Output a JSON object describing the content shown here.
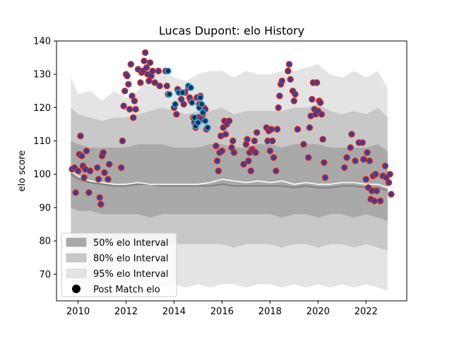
{
  "chart_data": {
    "type": "scatter",
    "title": "Lucas Dupont: elo History",
    "xlabel": "",
    "ylabel": "elo score",
    "xlim": [
      2009.1,
      2023.7
    ],
    "ylim": [
      62,
      140
    ],
    "xticks": [
      2010,
      2012,
      2014,
      2016,
      2018,
      2020,
      2022
    ],
    "yticks": [
      70,
      80,
      90,
      100,
      110,
      120,
      130,
      140
    ],
    "grid": false,
    "legend_position": "lower-left",
    "legend": [
      {
        "label": "50% elo Interval",
        "swatch": "band50"
      },
      {
        "label": "80% elo Interval",
        "swatch": "band80"
      },
      {
        "label": "95% elo Interval",
        "swatch": "band95"
      },
      {
        "label": "Post Match elo",
        "swatch": "dot"
      }
    ],
    "colors": {
      "band50": "#a9a9a9",
      "band80": "#c8c8c8",
      "band95": "#e4e4e4",
      "median_line": "#808080",
      "mean_line": "#ffffff",
      "point_fill": "#3a3f8f",
      "point_edge": "#d62728",
      "highlight_edge": "#29a8e0"
    },
    "bands": {
      "x": [
        2009.7,
        2010.0,
        2010.5,
        2011.0,
        2011.5,
        2012.0,
        2012.5,
        2013.0,
        2013.5,
        2014.0,
        2014.5,
        2015.0,
        2015.5,
        2016.0,
        2016.5,
        2017.0,
        2017.5,
        2018.0,
        2018.5,
        2019.0,
        2019.5,
        2020.0,
        2020.5,
        2021.0,
        2021.5,
        2022.0,
        2022.5,
        2022.9
      ],
      "p95_upper": [
        129,
        124,
        125,
        122,
        125,
        123,
        125,
        130,
        131,
        129,
        128,
        130,
        131,
        131,
        129,
        131,
        130,
        130,
        131,
        131,
        132,
        133,
        130,
        129,
        131,
        129,
        131,
        126
      ],
      "p95_lower": [
        67,
        68,
        67,
        68,
        67,
        68,
        67,
        67,
        66,
        67,
        66,
        67,
        66,
        67,
        67,
        66,
        67,
        67,
        66,
        67,
        66,
        67,
        66,
        67,
        66,
        67,
        66,
        65
      ],
      "p80_upper": [
        120,
        118,
        117,
        116,
        117,
        117,
        118,
        119,
        120,
        119,
        118,
        119,
        119,
        120,
        118,
        119,
        119,
        119,
        119,
        120,
        120,
        121,
        119,
        118,
        119,
        118,
        120,
        117
      ],
      "p80_lower": [
        78,
        79,
        79,
        80,
        80,
        80,
        79,
        78,
        78,
        79,
        79,
        79,
        79,
        79,
        78,
        79,
        79,
        79,
        78,
        79,
        79,
        78,
        79,
        79,
        78,
        79,
        78,
        77
      ],
      "p50_upper": [
        110,
        109,
        108,
        108,
        108,
        108,
        109,
        109,
        109,
        108,
        108,
        108,
        109,
        109,
        108,
        108,
        109,
        109,
        108,
        109,
        109,
        109,
        108,
        108,
        108,
        108,
        109,
        107
      ],
      "p50_lower": [
        90,
        89,
        89,
        88,
        88,
        88,
        88,
        87,
        88,
        88,
        88,
        88,
        88,
        88,
        88,
        88,
        88,
        88,
        87,
        88,
        88,
        87,
        88,
        88,
        87,
        88,
        87,
        86
      ]
    },
    "median_line": {
      "x": [
        2009.7,
        2010.0,
        2010.5,
        2011.0,
        2011.5,
        2012.0,
        2012.5,
        2013.0,
        2013.5,
        2014.0,
        2014.5,
        2015.0,
        2015.5,
        2016.0,
        2016.5,
        2017.0,
        2017.5,
        2018.0,
        2018.5,
        2019.0,
        2019.5,
        2020.0,
        2020.5,
        2021.0,
        2021.5,
        2022.0,
        2022.5,
        2022.9
      ],
      "y": [
        100,
        98.5,
        97.5,
        97,
        96.5,
        96.5,
        97,
        97,
        96.5,
        96.5,
        96.5,
        96.5,
        96.5,
        97,
        96.5,
        96.5,
        96.5,
        96.5,
        96.5,
        96,
        96.5,
        96,
        96,
        96.5,
        96.5,
        96,
        96,
        95
      ]
    },
    "mean_line": {
      "x": [
        2009.7,
        2010.0,
        2010.5,
        2011.0,
        2011.5,
        2012.0,
        2012.5,
        2013.0,
        2013.5,
        2014.0,
        2014.5,
        2015.0,
        2015.5,
        2016.0,
        2016.5,
        2017.0,
        2017.5,
        2018.0,
        2018.5,
        2019.0,
        2019.5,
        2020.0,
        2020.5,
        2021.0,
        2021.5,
        2022.0,
        2022.5,
        2022.9
      ],
      "y": [
        101,
        99.5,
        98,
        97.5,
        97,
        97,
        97.5,
        97,
        97,
        97,
        97,
        97,
        97.5,
        98.5,
        98,
        97.5,
        98,
        97.5,
        98,
        97,
        97.5,
        97,
        97,
        97.5,
        97.5,
        97,
        97,
        96
      ]
    },
    "points": [
      [
        2009.75,
        101.5
      ],
      [
        2009.85,
        102
      ],
      [
        2009.9,
        94.5
      ],
      [
        2010.0,
        101
      ],
      [
        2010.05,
        106
      ],
      [
        2010.1,
        111.5
      ],
      [
        2010.15,
        105.5
      ],
      [
        2010.2,
        102.5
      ],
      [
        2010.25,
        99
      ],
      [
        2010.3,
        101.5
      ],
      [
        2010.35,
        107
      ],
      [
        2010.45,
        94.5
      ],
      [
        2010.5,
        101
      ],
      [
        2010.8,
        102
      ],
      [
        2010.85,
        98.5
      ],
      [
        2010.9,
        93
      ],
      [
        2010.95,
        91
      ],
      [
        2011.0,
        105.5
      ],
      [
        2011.05,
        106.5
      ],
      [
        2011.1,
        100.5
      ],
      [
        2011.25,
        98.5
      ],
      [
        2011.3,
        103
      ],
      [
        2011.8,
        102
      ],
      [
        2011.85,
        110
      ],
      [
        2011.9,
        120.5
      ],
      [
        2011.95,
        125
      ],
      [
        2012.0,
        130
      ],
      [
        2012.05,
        129.5
      ],
      [
        2012.1,
        127
      ],
      [
        2012.15,
        119.5
      ],
      [
        2012.2,
        133
      ],
      [
        2012.25,
        123.5
      ],
      [
        2012.3,
        117
      ],
      [
        2012.35,
        122
      ],
      [
        2012.4,
        119.5
      ],
      [
        2012.5,
        131.5
      ],
      [
        2012.6,
        127.5
      ],
      [
        2012.65,
        130.5
      ],
      [
        2012.7,
        131
      ],
      [
        2012.75,
        134
      ],
      [
        2012.8,
        136.5
      ],
      [
        2012.85,
        132
      ],
      [
        2012.9,
        130
      ],
      [
        2012.95,
        128
      ],
      [
        2013.0,
        133.5
      ],
      [
        2013.05,
        129.5
      ],
      [
        2013.1,
        131
      ],
      [
        2013.2,
        127.5
      ],
      [
        2013.35,
        131
      ],
      [
        2013.4,
        126.5
      ],
      [
        2013.75,
        124
      ],
      [
        2013.7,
        126.5
      ],
      [
        2013.65,
        131
      ],
      [
        2014.0,
        120
      ],
      [
        2014.05,
        121
      ],
      [
        2014.1,
        118
      ],
      [
        2014.15,
        125.5
      ],
      [
        2014.2,
        124.5
      ],
      [
        2014.3,
        122.5
      ],
      [
        2014.4,
        121
      ],
      [
        2014.45,
        124.5
      ],
      [
        2014.6,
        126
      ],
      [
        2014.65,
        123
      ],
      [
        2014.7,
        122
      ],
      [
        2014.8,
        117
      ],
      [
        2014.85,
        115.5
      ],
      [
        2014.9,
        114
      ],
      [
        2014.95,
        123
      ],
      [
        2015.0,
        117
      ],
      [
        2015.05,
        121
      ],
      [
        2015.1,
        123.5
      ],
      [
        2015.15,
        116.5
      ],
      [
        2015.2,
        118
      ],
      [
        2015.25,
        120
      ],
      [
        2015.3,
        119.5
      ],
      [
        2015.35,
        113.5
      ],
      [
        2015.75,
        108.5
      ],
      [
        2015.8,
        104
      ],
      [
        2015.85,
        101
      ],
      [
        2015.9,
        106.5
      ],
      [
        2015.95,
        111.5
      ],
      [
        2016.0,
        107
      ],
      [
        2016.05,
        114
      ],
      [
        2016.1,
        116
      ],
      [
        2016.15,
        112
      ],
      [
        2016.2,
        115
      ],
      [
        2016.3,
        116
      ],
      [
        2016.4,
        108
      ],
      [
        2016.45,
        110
      ],
      [
        2016.5,
        106.5
      ],
      [
        2016.9,
        103
      ],
      [
        2017.0,
        109
      ],
      [
        2017.05,
        110.5
      ],
      [
        2017.1,
        104
      ],
      [
        2017.15,
        106.5
      ],
      [
        2017.2,
        101
      ],
      [
        2017.25,
        107.5
      ],
      [
        2017.3,
        107
      ],
      [
        2017.35,
        110
      ],
      [
        2017.4,
        106.5
      ],
      [
        2017.45,
        112.5
      ],
      [
        2017.85,
        114
      ],
      [
        2017.9,
        110
      ],
      [
        2017.95,
        113
      ],
      [
        2018.0,
        107
      ],
      [
        2018.05,
        113.5
      ],
      [
        2018.1,
        110
      ],
      [
        2018.15,
        105
      ],
      [
        2018.25,
        101
      ],
      [
        2018.3,
        113.5
      ],
      [
        2018.35,
        120
      ],
      [
        2018.4,
        123.5
      ],
      [
        2018.45,
        127
      ],
      [
        2018.5,
        128
      ],
      [
        2018.75,
        131
      ],
      [
        2018.8,
        133
      ],
      [
        2018.85,
        128.5
      ],
      [
        2018.95,
        125
      ],
      [
        2019.0,
        122
      ],
      [
        2019.05,
        124
      ],
      [
        2019.15,
        113.5
      ],
      [
        2019.4,
        109
      ],
      [
        2019.6,
        105
      ],
      [
        2019.65,
        114
      ],
      [
        2019.7,
        117.5
      ],
      [
        2019.75,
        122.5
      ],
      [
        2019.8,
        127.5
      ],
      [
        2019.85,
        119.5
      ],
      [
        2019.9,
        118
      ],
      [
        2019.95,
        127.5
      ],
      [
        2020.0,
        119
      ],
      [
        2020.05,
        122
      ],
      [
        2020.1,
        121.5
      ],
      [
        2020.15,
        118
      ],
      [
        2020.2,
        110.5
      ],
      [
        2020.25,
        103.5
      ],
      [
        2020.3,
        99
      ],
      [
        2021.1,
        102
      ],
      [
        2021.2,
        105
      ],
      [
        2021.35,
        108
      ],
      [
        2021.4,
        112
      ],
      [
        2021.55,
        104
      ],
      [
        2021.7,
        109.5
      ],
      [
        2021.85,
        109.5
      ],
      [
        2021.9,
        104.5
      ],
      [
        2022.0,
        98.5
      ],
      [
        2022.05,
        106.5
      ],
      [
        2022.1,
        96
      ],
      [
        2022.15,
        104
      ],
      [
        2022.2,
        92.5
      ],
      [
        2022.25,
        95
      ],
      [
        2022.3,
        99.5
      ],
      [
        2022.35,
        92
      ],
      [
        2022.4,
        100
      ],
      [
        2022.45,
        95
      ],
      [
        2022.6,
        92
      ],
      [
        2022.7,
        99.5
      ],
      [
        2022.8,
        102.5
      ],
      [
        2022.85,
        99
      ],
      [
        2022.95,
        97.5
      ],
      [
        2023.0,
        100
      ],
      [
        2023.05,
        94
      ]
    ],
    "highlighted_points": [
      [
        2013.75,
        131
      ],
      [
        2013.8,
        124
      ],
      [
        2014.05,
        121
      ],
      [
        2014.2,
        124.5
      ],
      [
        2014.35,
        124.5
      ],
      [
        2014.6,
        126.5
      ],
      [
        2014.7,
        126
      ],
      [
        2014.75,
        121.5
      ],
      [
        2014.85,
        117
      ],
      [
        2014.9,
        114.5
      ],
      [
        2015.0,
        115.5
      ],
      [
        2015.05,
        120
      ],
      [
        2015.1,
        123
      ],
      [
        2015.15,
        121
      ],
      [
        2015.2,
        118.5
      ],
      [
        2015.3,
        116
      ],
      [
        2015.4,
        114
      ]
    ]
  }
}
